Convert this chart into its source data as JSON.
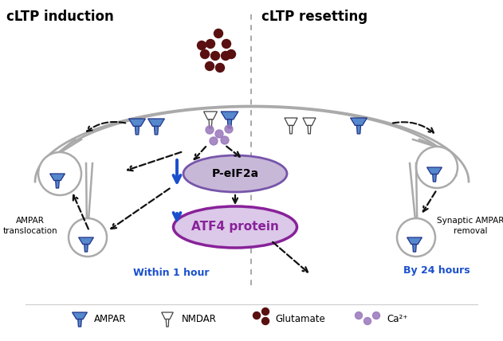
{
  "title_left": "cLTP induction",
  "title_right": "cLTP resetting",
  "label_within": "Within 1 hour",
  "label_by24": "By 24 hours",
  "pelif2a_text": "P-eIF2a",
  "atf4_text": "ATF4 protein",
  "legend_items": [
    "AMPAR",
    "NMDAR",
    "Glutamate",
    "Ca²⁺"
  ],
  "ampar_label": "AMPAR\ntranslocation",
  "synaptic_label": "Synaptic AMPAR\nremoval",
  "bg_color": "#ffffff",
  "spine_color": "#aaaaaa",
  "blue_color": "#1a4fcc",
  "pelif2a_fill": "#c8b8d8",
  "pelif2a_edge": "#7755aa",
  "atf4_fill": "#dcc8e8",
  "atf4_edge": "#882299",
  "glutamate_color": "#5a1010",
  "calcium_color": "#9977bb",
  "ampar_fill": "#5588cc",
  "ampar_edge": "#223388",
  "nmdar_fill": "#ffffff",
  "nmdar_edge": "#444444",
  "divider_color": "#999999",
  "arrow_color": "#111111"
}
